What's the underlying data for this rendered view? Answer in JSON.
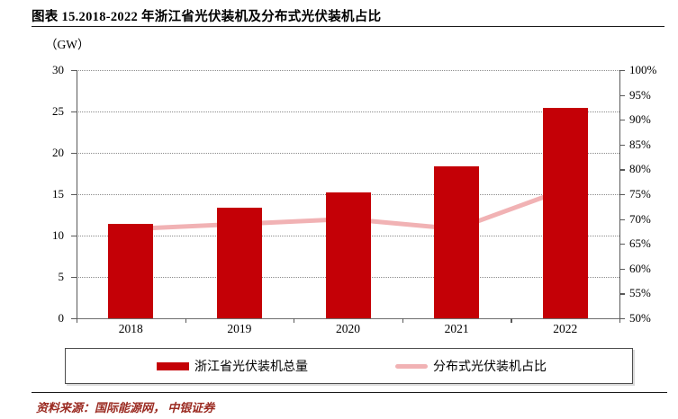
{
  "header": {
    "title": "图表 15.2018-2022 年浙江省光伏装机及分布式光伏装机占比",
    "unit_label": "（GW）"
  },
  "footer": {
    "source": "资料来源：国际能源网， 中银证券"
  },
  "colors": {
    "bar": "#C40006",
    "line": "#F1B2B4",
    "grid": "#8C8C8C",
    "axis": "#595959",
    "source_text": "#9B2B22"
  },
  "chart_data": {
    "type": "bar+line combo",
    "categories": [
      "2018",
      "2019",
      "2020",
      "2021",
      "2022"
    ],
    "series": [
      {
        "name": "浙江省光伏装机总量",
        "type": "bar",
        "axis": "left",
        "unit": "GW",
        "values": [
          11.4,
          13.4,
          15.2,
          18.4,
          25.4
        ]
      },
      {
        "name": "分布式光伏装机占比",
        "type": "line",
        "axis": "right",
        "unit": "%",
        "values": [
          68,
          69,
          70,
          68,
          76
        ]
      }
    ],
    "left_axis": {
      "min": 0,
      "max": 30,
      "step": 5,
      "ticks": [
        "0",
        "5",
        "10",
        "15",
        "20",
        "25",
        "30"
      ]
    },
    "right_axis": {
      "min": 50,
      "max": 100,
      "step": 5,
      "ticks": [
        "50%",
        "55%",
        "60%",
        "65%",
        "70%",
        "75%",
        "80%",
        "85%",
        "90%",
        "95%",
        "100%"
      ]
    },
    "grid": "horizontal dotted at every 5 GW",
    "legend_position": "bottom boxed"
  },
  "legend": {
    "items": [
      {
        "label": "浙江省光伏装机总量",
        "swatch": "bar"
      },
      {
        "label": "分布式光伏装机占比",
        "swatch": "line"
      }
    ]
  }
}
